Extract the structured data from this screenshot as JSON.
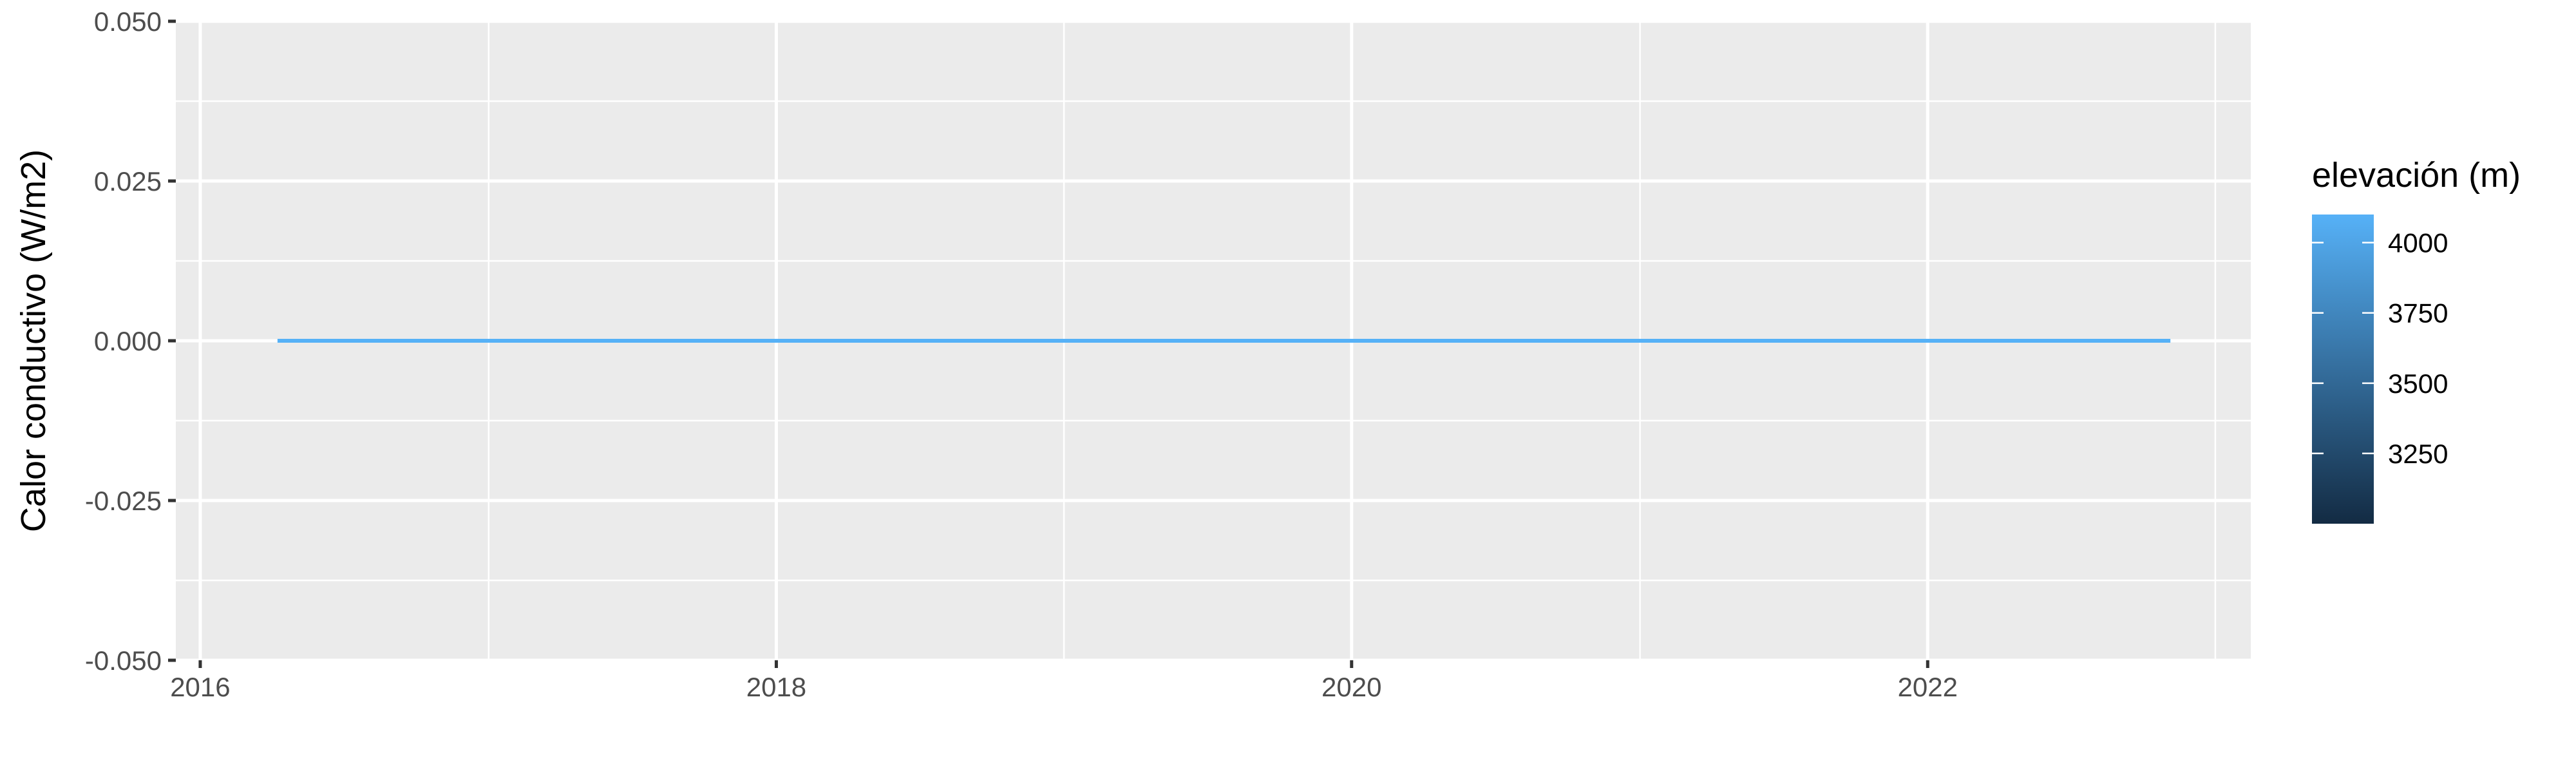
{
  "chart_data": {
    "type": "line",
    "title": "",
    "xlabel": "",
    "ylabel": "Calor conductivo (W/m2)",
    "x_axis": {
      "type": "date",
      "range": [
        "2015-12-01",
        "2023-02-15"
      ],
      "ticks": [
        {
          "value": "2016-01-01",
          "label": "2016"
        },
        {
          "value": "2018-01-01",
          "label": "2018"
        },
        {
          "value": "2020-01-01",
          "label": "2020"
        },
        {
          "value": "2022-01-01",
          "label": "2022"
        }
      ],
      "minor_ticks": [
        "2017-01-01",
        "2019-01-01",
        "2021-01-01",
        "2023-01-01"
      ]
    },
    "y_axis": {
      "range": [
        -0.05,
        0.05
      ],
      "ticks": [
        {
          "value": -0.05,
          "label": "-0.050"
        },
        {
          "value": -0.025,
          "label": "-0.025"
        },
        {
          "value": 0,
          "label": "0.000"
        },
        {
          "value": 0.025,
          "label": "0.025"
        },
        {
          "value": 0.05,
          "label": "0.050"
        }
      ]
    },
    "grid": true,
    "panel_background": "#ebebeb",
    "grid_color": "#ffffff",
    "series": [
      {
        "x": [
          "2016-04-08",
          "2022-11-05"
        ],
        "y": [
          0,
          0
        ],
        "elevation": 4100,
        "color": "#56b1f7"
      }
    ],
    "legend": {
      "title": "elevación (m)",
      "placement": "right",
      "type": "colorbar",
      "range": [
        3000,
        4100
      ],
      "color_low": "#132b43",
      "color_high": "#56b1f7",
      "ticks": [
        {
          "value": 3250,
          "label": "3250"
        },
        {
          "value": 3500,
          "label": "3500"
        },
        {
          "value": 3750,
          "label": "3750"
        },
        {
          "value": 4000,
          "label": "4000"
        }
      ]
    }
  }
}
